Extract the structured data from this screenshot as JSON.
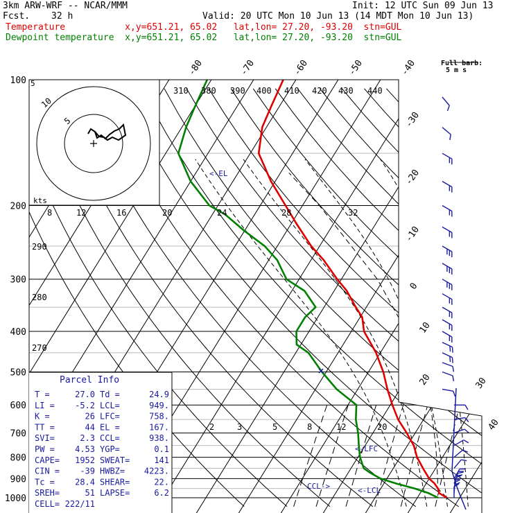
{
  "header": {
    "model": "3km ARW-WRF -- NCAR/MMM",
    "init": "Init: 12 UTC Sun 09 Jun 13",
    "fcst_label": "Fcst.",
    "fcst_value": "32 h",
    "valid": "Valid: 20 UTC Mon 10 Jun 13 (14 MDT Mon 10 Jun 13)",
    "temp_line": "Temperature           x,y=651.21, 65.02   lat,lon= 27.20, -93.20  stn=GUL",
    "dew_line": "Dewpoint temperature  x,y=651.21, 65.02   lat,lon= 27.20, -93.20  stn=GUL"
  },
  "colors": {
    "temperature": "#e00000",
    "dewpoint": "#008000",
    "barbs": "#1a1aa0",
    "isotherm": "#000000"
  },
  "pressure_labels": [
    "100",
    "200",
    "300",
    "400",
    "500",
    "600",
    "700",
    "800",
    "900",
    "1000"
  ],
  "isotherm_labels_top": [
    "-80",
    "-70",
    "-60",
    "-50",
    "-40"
  ],
  "isotherm_labels_right": [
    "-30",
    "-20",
    "-10",
    "0",
    "10",
    "20",
    "30",
    "40"
  ],
  "theta_labels": [
    "310",
    "380",
    "390",
    "400",
    "410",
    "420",
    "430",
    "440"
  ],
  "theta_labels_left": [
    "290",
    "280",
    "270"
  ],
  "mixing_ratio_labels": [
    "2",
    "3",
    "5",
    "8",
    "12",
    "20"
  ],
  "hodograph": {
    "rings": [
      "5",
      "10"
    ],
    "kts_label": "kts",
    "speed_labels": [
      "8",
      "12",
      "16",
      "20",
      "24",
      "28",
      "32"
    ]
  },
  "annotations": {
    "el": "<-EL",
    "lfc": "<-LFC",
    "ccl": "CCL->",
    "lcl": "<-LCL"
  },
  "barb_legend": {
    "title": "Full barb:",
    "subtitle": "5 m s"
  },
  "parcel": {
    "title": "Parcel Info",
    "rows": [
      [
        "T  =",
        "27.0",
        "Td =",
        "24.9"
      ],
      [
        "LI =",
        "-5.2",
        "LCL=",
        "949."
      ],
      [
        "K  =",
        "26",
        "LFC=",
        "758."
      ],
      [
        "TT =",
        "44",
        "EL =",
        "167."
      ],
      [
        "SVI=",
        "2.3",
        "CCL=",
        "938."
      ],
      [
        "PW =",
        "4.53",
        "YGP=",
        "0.1"
      ],
      [
        "CAPE=",
        "1952",
        "SWEAT=",
        "141"
      ],
      [
        "CIN =",
        "-39",
        "HWBZ=",
        "4223."
      ],
      [
        "Tc =",
        "28.4",
        "SHEAR=",
        "22."
      ],
      [
        "SREH=",
        "51",
        "LAPSE=",
        "6.2"
      ],
      [
        "CELL=",
        "222/11",
        "",
        ""
      ]
    ]
  },
  "chart_data": {
    "type": "line",
    "title": "",
    "xlabel": "",
    "ylabel": "",
    "x_units": "deg C",
    "y_units": "hPa",
    "ylim": [
      1000,
      100
    ],
    "y_scale": "log",
    "series": [
      {
        "name": "Temperature",
        "p": [
          1000,
          975,
          950,
          925,
          900,
          850,
          800,
          750,
          700,
          650,
          600,
          550,
          500,
          450,
          400,
          370,
          350,
          320,
          300,
          270,
          250,
          220,
          200,
          175,
          150,
          130,
          115,
          100
        ],
        "t": [
          27.0,
          24.5,
          23.5,
          22.0,
          20.0,
          17.0,
          14.0,
          11.5,
          8.0,
          4.0,
          0.5,
          -3.0,
          -6.5,
          -11.0,
          -17.0,
          -19.5,
          -22.5,
          -27.0,
          -31.0,
          -37.0,
          -42.0,
          -49.0,
          -54.0,
          -61.0,
          -68.0,
          -71.0,
          -72.0,
          -73.0
        ]
      },
      {
        "name": "Dewpoint temperature",
        "p": [
          1000,
          975,
          950,
          925,
          900,
          870,
          850,
          800,
          750,
          700,
          650,
          600,
          550,
          500,
          450,
          430,
          400,
          370,
          350,
          320,
          300,
          270,
          250,
          230,
          210,
          200,
          175,
          150,
          130,
          115,
          100
        ],
        "t": [
          24.9,
          22.0,
          18.0,
          13.0,
          8.5,
          5.0,
          3.0,
          0.5,
          -1.5,
          -3.5,
          -6.0,
          -8.0,
          -15.0,
          -21.0,
          -27.0,
          -31.0,
          -33.0,
          -33.0,
          -32.0,
          -37.0,
          -43.0,
          -48.0,
          -53.0,
          -60.0,
          -67.0,
          -72.0,
          -80.0,
          -87.0,
          -89.0,
          -90.0,
          -91.0
        ]
      }
    ],
    "parcel_path": {
      "p": [
        1000,
        949,
        900,
        800,
        758,
        700,
        600,
        500,
        400,
        300,
        200,
        167
      ],
      "t": [
        27.0,
        23.4,
        22.0,
        18.6,
        17.0,
        14.5,
        9.5,
        2.8,
        -7.0,
        -21.5,
        -46.0,
        -58.0
      ]
    },
    "isotherms_c": [
      -120,
      -110,
      -100,
      -90,
      -80,
      -70,
      -60,
      -50,
      -40,
      -30,
      -20,
      -10,
      0,
      10,
      20,
      30,
      40
    ],
    "isobars_hpa": [
      100,
      200,
      300,
      400,
      500,
      600,
      700,
      800,
      900,
      1000
    ],
    "dry_adiabats_k": [
      250,
      260,
      270,
      280,
      290,
      300,
      310,
      320,
      330,
      340,
      350,
      360,
      370,
      380,
      390,
      400,
      410,
      420,
      430,
      440
    ],
    "moist_adiabats_k": [
      290,
      295,
      300,
      305,
      310,
      315
    ],
    "mixing_ratio_gkg": [
      2,
      3,
      5,
      8,
      12,
      20
    ],
    "wind_barbs": [
      {
        "p": 1000,
        "spd": 5,
        "dir": 180
      },
      {
        "p": 975,
        "spd": 8,
        "dir": 185
      },
      {
        "p": 950,
        "spd": 10,
        "dir": 190
      },
      {
        "p": 925,
        "spd": 10,
        "dir": 200
      },
      {
        "p": 900,
        "spd": 8,
        "dir": 210
      },
      {
        "p": 850,
        "spd": 6,
        "dir": 220
      },
      {
        "p": 800,
        "spd": 5,
        "dir": 230
      },
      {
        "p": 750,
        "spd": 4,
        "dir": 240
      },
      {
        "p": 700,
        "spd": 3,
        "dir": 250
      },
      {
        "p": 650,
        "spd": 3,
        "dir": 260
      },
      {
        "p": 600,
        "spd": 3,
        "dir": 270
      },
      {
        "p": 550,
        "spd": 4,
        "dir": 280
      },
      {
        "p": 500,
        "spd": 6,
        "dir": 290
      },
      {
        "p": 475,
        "spd": 7,
        "dir": 290
      },
      {
        "p": 450,
        "spd": 8,
        "dir": 295
      },
      {
        "p": 425,
        "spd": 9,
        "dir": 295
      },
      {
        "p": 400,
        "spd": 10,
        "dir": 300
      },
      {
        "p": 375,
        "spd": 11,
        "dir": 300
      },
      {
        "p": 350,
        "spd": 12,
        "dir": 300
      },
      {
        "p": 325,
        "spd": 12,
        "dir": 300
      },
      {
        "p": 300,
        "spd": 13,
        "dir": 300
      },
      {
        "p": 275,
        "spd": 13,
        "dir": 300
      },
      {
        "p": 250,
        "spd": 13,
        "dir": 300
      },
      {
        "p": 225,
        "spd": 12,
        "dir": 300
      },
      {
        "p": 200,
        "spd": 12,
        "dir": 300
      },
      {
        "p": 175,
        "spd": 10,
        "dir": 300
      },
      {
        "p": 150,
        "spd": 8,
        "dir": 300
      },
      {
        "p": 130,
        "spd": 5,
        "dir": 310
      },
      {
        "p": 110,
        "spd": 3,
        "dir": 320
      }
    ]
  }
}
